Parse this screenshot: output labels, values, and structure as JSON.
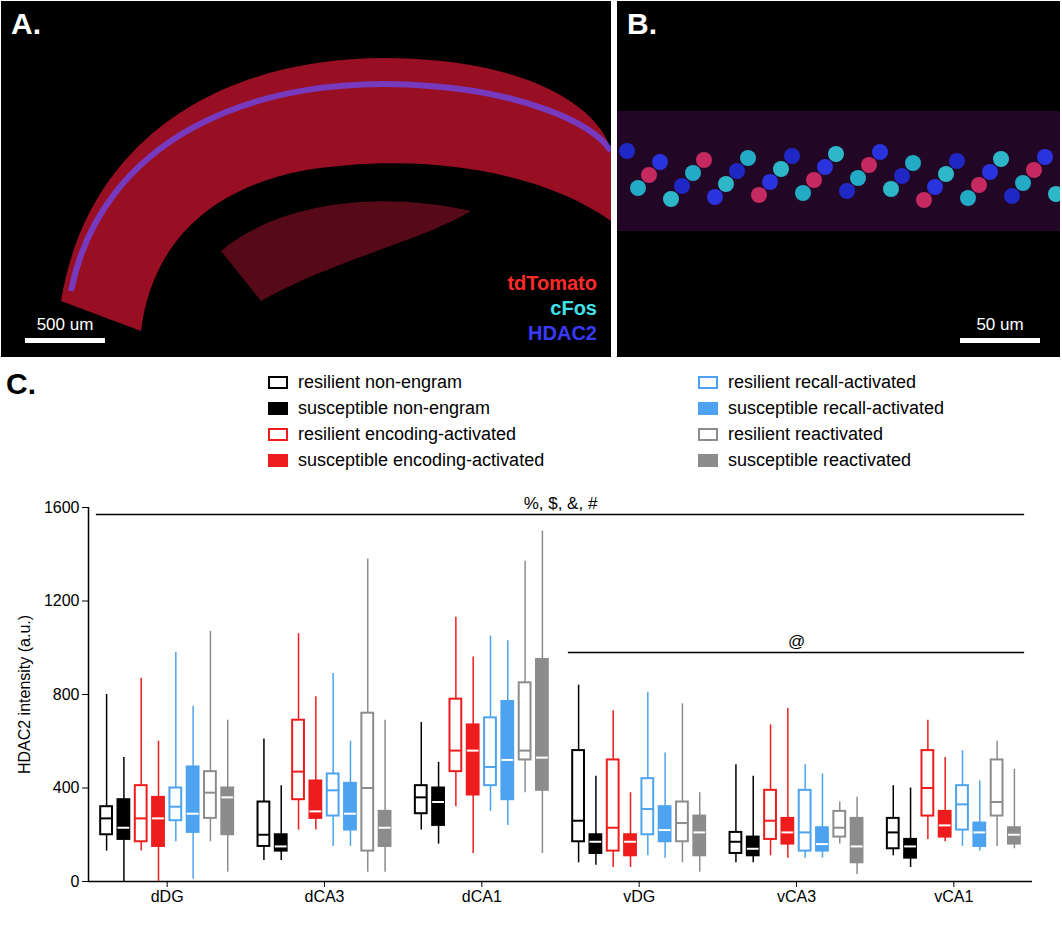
{
  "panels": [
    {
      "letter": "A.",
      "channels": [
        {
          "label": "tdTomato",
          "color": "#ff2a2a"
        },
        {
          "label": "cFos",
          "color": "#3fe0e8"
        },
        {
          "label": "HDAC2",
          "color": "#3a3aff"
        }
      ],
      "scale_bar": "500 um"
    },
    {
      "letter": "B.",
      "scale_bar": "50 um"
    },
    {
      "letter": "C."
    }
  ],
  "chart_data": {
    "type": "box",
    "ylabel": "HDAC2 intensity (a.u.)",
    "categories": [
      "dDG",
      "dCA3",
      "dCA1",
      "vDG",
      "vCA3",
      "vCA1"
    ],
    "ylim": [
      0,
      1600
    ],
    "yticks": [
      0,
      400,
      800,
      1200,
      1600
    ],
    "annotations": [
      {
        "text": "%, $, &, #",
        "from": "dDG",
        "to": "vCA1",
        "y": 1570
      },
      {
        "text": "@",
        "from": "vDG",
        "to": "vCA1",
        "y": 980
      }
    ],
    "series": [
      {
        "name": "resilient non-engram",
        "color": "#000000",
        "marker": "open",
        "values": [
          {
            "min": 130,
            "q1": 200,
            "median": 270,
            "q3": 320,
            "max": 800
          },
          {
            "min": 90,
            "q1": 150,
            "median": 200,
            "q3": 340,
            "max": 610
          },
          {
            "min": 220,
            "q1": 290,
            "median": 360,
            "q3": 410,
            "max": 680
          },
          {
            "min": 80,
            "q1": 170,
            "median": 260,
            "q3": 560,
            "max": 840
          },
          {
            "min": 80,
            "q1": 120,
            "median": 170,
            "q3": 210,
            "max": 500
          },
          {
            "min": 110,
            "q1": 140,
            "median": 210,
            "q3": 270,
            "max": 410
          }
        ]
      },
      {
        "name": "susceptible non-engram",
        "color": "#000000",
        "marker": "filled",
        "values": [
          {
            "min": 0,
            "q1": 180,
            "median": 230,
            "q3": 350,
            "max": 530
          },
          {
            "min": 90,
            "q1": 130,
            "median": 150,
            "q3": 200,
            "max": 410
          },
          {
            "min": 160,
            "q1": 240,
            "median": 340,
            "q3": 400,
            "max": 510
          },
          {
            "min": 70,
            "q1": 120,
            "median": 170,
            "q3": 200,
            "max": 450
          },
          {
            "min": 80,
            "q1": 110,
            "median": 140,
            "q3": 190,
            "max": 450
          },
          {
            "min": 60,
            "q1": 100,
            "median": 150,
            "q3": 180,
            "max": 400
          }
        ]
      },
      {
        "name": "resilient encoding-activated",
        "color": "#ee1c1c",
        "marker": "open",
        "values": [
          {
            "min": 130,
            "q1": 170,
            "median": 270,
            "q3": 410,
            "max": 870
          },
          {
            "min": 220,
            "q1": 350,
            "median": 470,
            "q3": 690,
            "max": 1060
          },
          {
            "min": 320,
            "q1": 470,
            "median": 560,
            "q3": 780,
            "max": 1130
          },
          {
            "min": 60,
            "q1": 130,
            "median": 230,
            "q3": 520,
            "max": 730
          },
          {
            "min": 110,
            "q1": 180,
            "median": 260,
            "q3": 390,
            "max": 670
          },
          {
            "min": 180,
            "q1": 280,
            "median": 400,
            "q3": 560,
            "max": 690
          }
        ]
      },
      {
        "name": "susceptible encoding-activated",
        "color": "#ee1c1c",
        "marker": "filled",
        "values": [
          {
            "min": 0,
            "q1": 150,
            "median": 270,
            "q3": 360,
            "max": 600
          },
          {
            "min": 220,
            "q1": 270,
            "median": 300,
            "q3": 430,
            "max": 790
          },
          {
            "min": 120,
            "q1": 370,
            "median": 560,
            "q3": 670,
            "max": 960
          },
          {
            "min": 60,
            "q1": 110,
            "median": 170,
            "q3": 200,
            "max": 380
          },
          {
            "min": 100,
            "q1": 160,
            "median": 210,
            "q3": 270,
            "max": 740
          },
          {
            "min": 170,
            "q1": 190,
            "median": 240,
            "q3": 300,
            "max": 530
          }
        ]
      },
      {
        "name": "resilient recall-activated",
        "color": "#4da3ef",
        "marker": "open",
        "values": [
          {
            "min": 170,
            "q1": 260,
            "median": 320,
            "q3": 400,
            "max": 980
          },
          {
            "min": 150,
            "q1": 280,
            "median": 390,
            "q3": 460,
            "max": 890
          },
          {
            "min": 300,
            "q1": 410,
            "median": 490,
            "q3": 700,
            "max": 1050
          },
          {
            "min": 110,
            "q1": 200,
            "median": 310,
            "q3": 440,
            "max": 810
          },
          {
            "min": 100,
            "q1": 130,
            "median": 210,
            "q3": 390,
            "max": 500
          },
          {
            "min": 150,
            "q1": 220,
            "median": 330,
            "q3": 410,
            "max": 560
          }
        ]
      },
      {
        "name": "susceptible recall-activated",
        "color": "#4da3ef",
        "marker": "filled",
        "values": [
          {
            "min": 10,
            "q1": 210,
            "median": 290,
            "q3": 490,
            "max": 750
          },
          {
            "min": 150,
            "q1": 220,
            "median": 290,
            "q3": 420,
            "max": 600
          },
          {
            "min": 240,
            "q1": 350,
            "median": 520,
            "q3": 770,
            "max": 1030
          },
          {
            "min": 100,
            "q1": 170,
            "median": 220,
            "q3": 320,
            "max": 550
          },
          {
            "min": 100,
            "q1": 130,
            "median": 160,
            "q3": 230,
            "max": 460
          },
          {
            "min": 130,
            "q1": 150,
            "median": 210,
            "q3": 250,
            "max": 430
          }
        ]
      },
      {
        "name": "resilient reactivated",
        "color": "#8c8c8c",
        "marker": "open",
        "values": [
          {
            "min": 170,
            "q1": 270,
            "median": 380,
            "q3": 470,
            "max": 1070
          },
          {
            "min": 40,
            "q1": 130,
            "median": 400,
            "q3": 720,
            "max": 1380
          },
          {
            "min": 380,
            "q1": 520,
            "median": 560,
            "q3": 850,
            "max": 1370
          },
          {
            "min": 80,
            "q1": 170,
            "median": 250,
            "q3": 340,
            "max": 760
          },
          {
            "min": 160,
            "q1": 190,
            "median": 230,
            "q3": 300,
            "max": 340
          },
          {
            "min": 150,
            "q1": 280,
            "median": 340,
            "q3": 520,
            "max": 600
          }
        ]
      },
      {
        "name": "susceptible reactivated",
        "color": "#8c8c8c",
        "marker": "filled",
        "values": [
          {
            "min": 40,
            "q1": 200,
            "median": 360,
            "q3": 400,
            "max": 690
          },
          {
            "min": 40,
            "q1": 150,
            "median": 230,
            "q3": 300,
            "max": 690
          },
          {
            "min": 120,
            "q1": 390,
            "median": 530,
            "q3": 950,
            "max": 1500
          },
          {
            "min": 40,
            "q1": 110,
            "median": 210,
            "q3": 280,
            "max": 380
          },
          {
            "min": 30,
            "q1": 80,
            "median": 150,
            "q3": 270,
            "max": 360
          },
          {
            "min": 140,
            "q1": 160,
            "median": 200,
            "q3": 230,
            "max": 480
          }
        ]
      }
    ]
  }
}
